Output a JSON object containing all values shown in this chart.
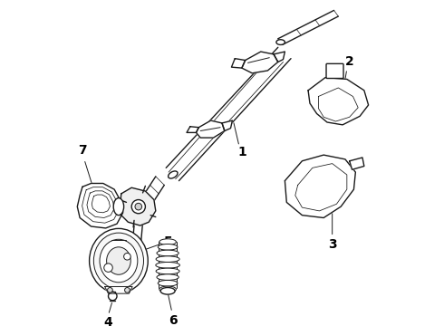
{
  "background_color": "#ffffff",
  "line_color": "#1a1a1a",
  "label_color": "#000000",
  "figure_width": 4.9,
  "figure_height": 3.6,
  "dpi": 100,
  "label_fontsize": 10
}
